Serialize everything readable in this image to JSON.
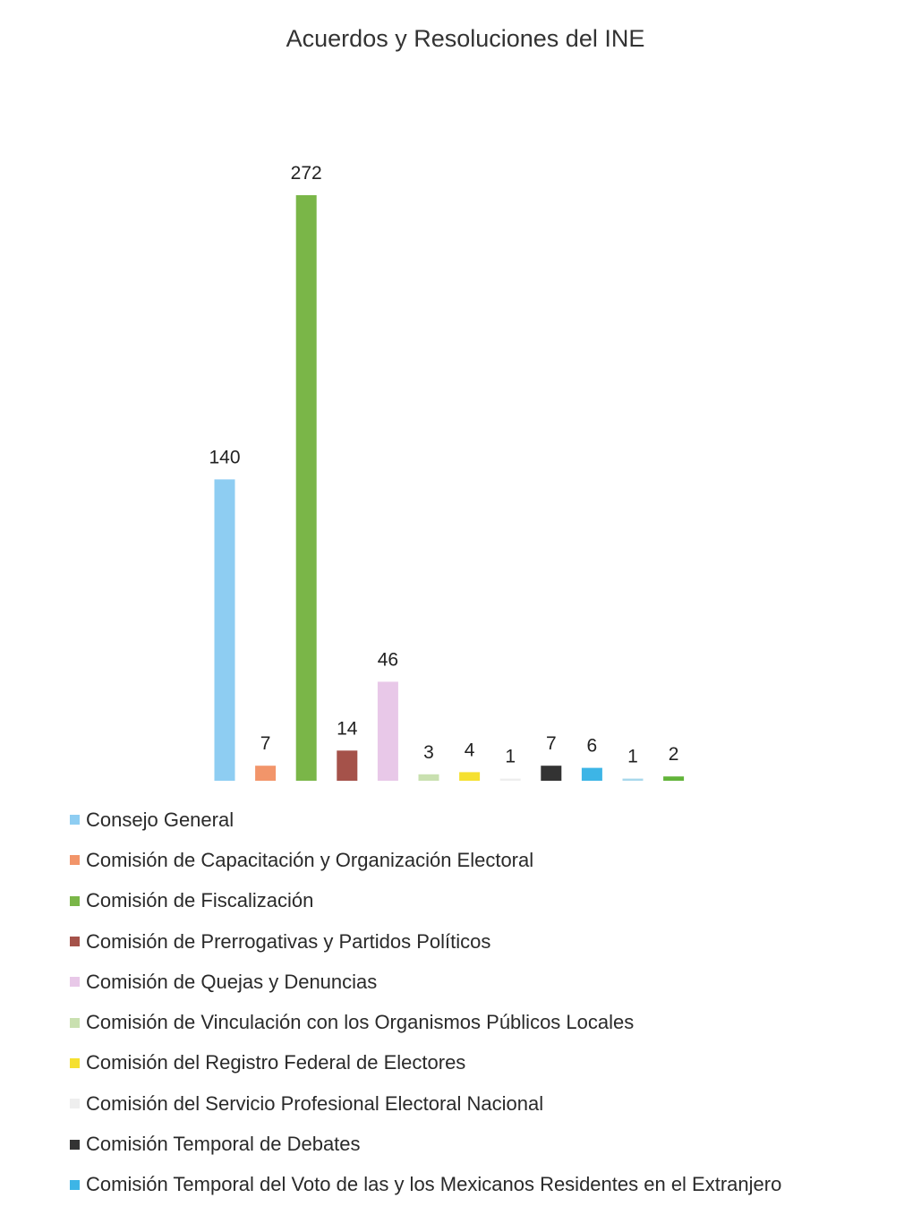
{
  "chart_data": {
    "type": "bar",
    "title": "Acuerdos y Resoluciones del INE",
    "xlabel": "",
    "ylabel": "",
    "ylim": [
      0,
      272
    ],
    "grid": false,
    "legend_position": "bottom",
    "show_data_labels": true,
    "categories": [
      "Consejo General",
      "Comisión de Capacitación y Organización Electoral",
      "Comisión de Fiscalización",
      "Comisión de Prerrogativas y Partidos Políticos",
      "Comisión de Quejas y Denuncias",
      "Comisión de Vinculación con los Organismos Públicos Locales",
      "Comisión del Registro Federal de Electores",
      "Comisión del Servicio Profesional Electoral Nacional",
      "Comisión Temporal de Debates",
      "Comisión Temporal del Voto de las y los Mexicanos Residentes en el Extranjero",
      "",
      ""
    ],
    "values": [
      140,
      7,
      272,
      14,
      46,
      3,
      4,
      1,
      7,
      6,
      1,
      2
    ],
    "colors": [
      "#8ecdf2",
      "#f2956a",
      "#7ab648",
      "#a5524a",
      "#e8c8e8",
      "#c9e0b0",
      "#f5e030",
      "#eeeeee",
      "#333333",
      "#3db5e6",
      "#a8d8ec",
      "#62b43a"
    ]
  }
}
